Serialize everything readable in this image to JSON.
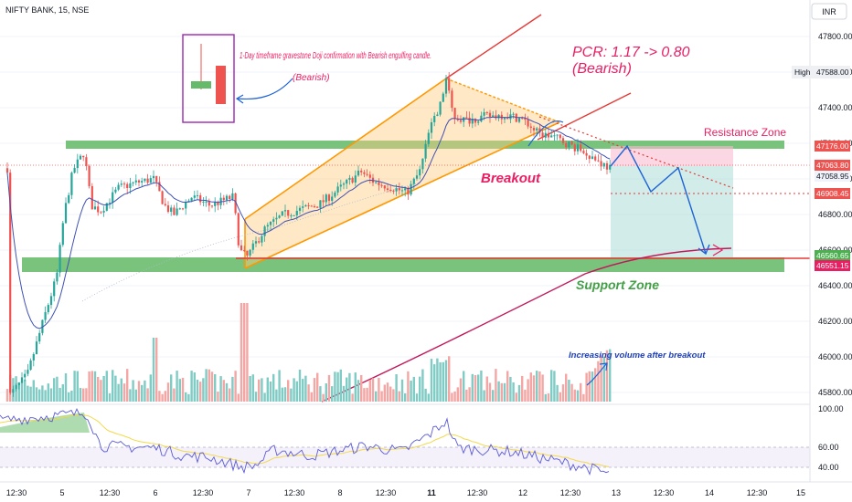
{
  "header": {
    "symbol": "NIFTY BANK, 15, NSE",
    "currency": "INR"
  },
  "chart_data": {
    "type": "candlestick",
    "price_axis": {
      "ticks": [
        45800,
        46000,
        46200,
        46400,
        46600,
        46800,
        47000,
        47200,
        47400,
        47600,
        47800
      ],
      "ylim": [
        45700,
        47950
      ]
    },
    "time_axis": {
      "ticks": [
        "12:30",
        "5",
        "12:30",
        "6",
        "12:30",
        "7",
        "12:30",
        "8",
        "12:30",
        "11",
        "12:30",
        "12",
        "12:30",
        "13",
        "12:30",
        "14",
        "12:30",
        "15"
      ]
    },
    "price_labels": [
      {
        "text": "High",
        "value": "47588.00",
        "kind": "high"
      },
      {
        "text": "47176.00",
        "kind": "resistance"
      },
      {
        "text": "47063.80",
        "kind": "entry-red"
      },
      {
        "text": "47058.95",
        "kind": "last"
      },
      {
        "text": "46908.45",
        "kind": "red"
      },
      {
        "text": "46560.65",
        "kind": "green-box"
      },
      {
        "text": "46551.15",
        "kind": "red-box"
      }
    ],
    "rsi_axis": {
      "ticks": [
        "100.00",
        "60.00",
        "40.00"
      ]
    },
    "annotations": {
      "doji_note": "1-Day timeframe gravestone Doji confirmation with Bearish engulfing candle.",
      "doji_bearish": "(Bearish)",
      "pcr": "PCR: 1.17 -> 0.80",
      "pcr_bearish": "(Bearish)",
      "resistance": "Resistance Zone",
      "breakout": "Breakout",
      "support": "Support Zone",
      "volume_note": "Increasing volume after breakout"
    },
    "colors": {
      "up": "#26a69a",
      "down": "#ef5350",
      "zone": "#4caf50",
      "channel": "#ff9800",
      "trend": "#e53935",
      "projection": "#1e63d6",
      "annotation": "#e91e63",
      "rsi": "#5b5bd6"
    }
  }
}
